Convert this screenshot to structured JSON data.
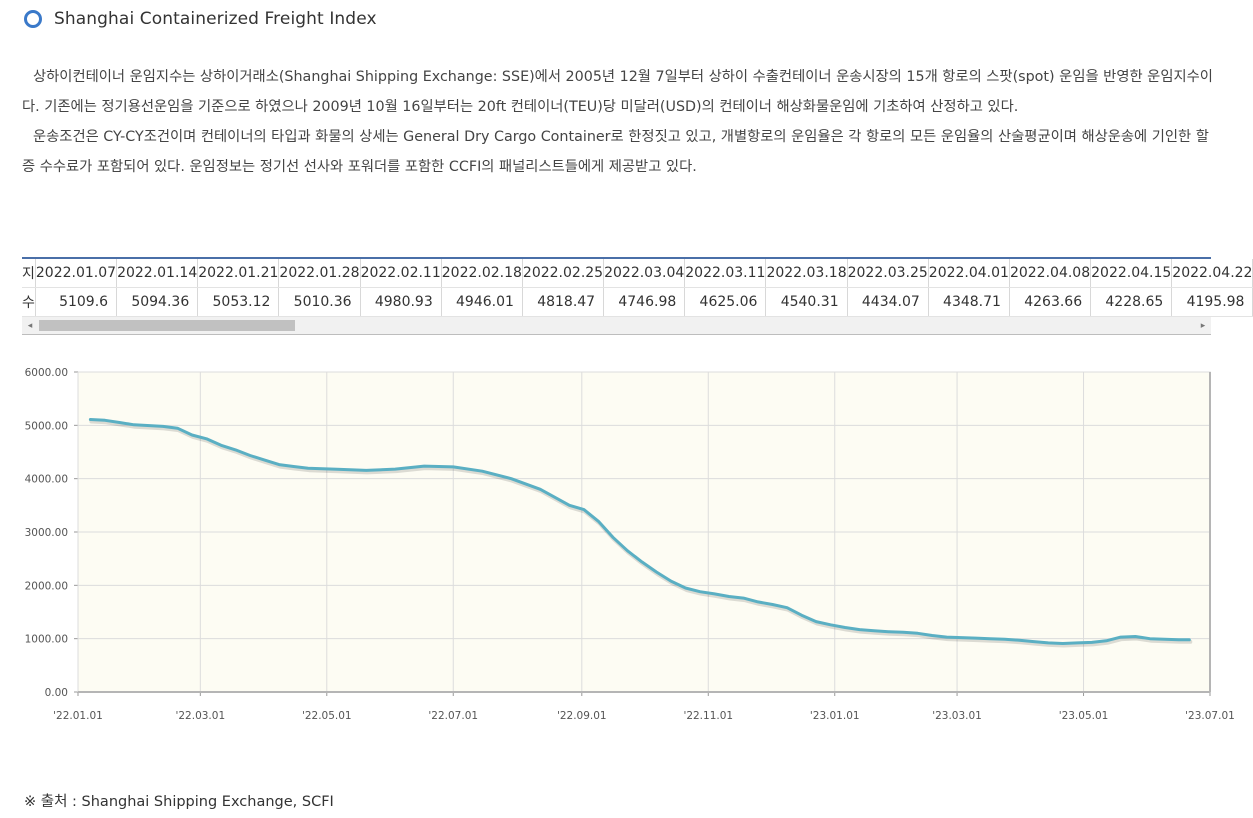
{
  "header": {
    "title": "Shanghai Containerized Freight Index"
  },
  "description": {
    "p1": "상하이컨테이너 운임지수는 상하이거래소(Shanghai Shipping Exchange: SSE)에서 2005년 12월 7일부터 상하이 수출컨테이너 운송시장의 15개 항로의 스팟(spot) 운임을 반영한 운임지수이다. 기존에는 정기용선운임을 기준으로 하였으나 2009년 10월 16일부터는 20ft 컨테이너(TEU)당 미달러(USD)의 컨테이너 해상화물운임에 기초하여 산정하고 있다.",
    "p2": "운송조건은 CY-CY조건이며 컨테이너의 타입과 화물의 상세는 General Dry Cargo Container로 한정짓고 있고, 개별항로의 운임율은 각 항로의 모든 운임율의 산술평균이며 해상운송에 기인한 할증 수수료가 포함되어 있다. 운임정보는 정기선 선사와 포워더를 포함한 CCFI의 패널리스트들에게 제공받고 있다."
  },
  "table": {
    "header_date": "지",
    "header_value": "수",
    "dates": [
      "2022.01.07",
      "2022.01.14",
      "2022.01.21",
      "2022.01.28",
      "2022.02.11",
      "2022.02.18",
      "2022.02.25",
      "2022.03.04",
      "2022.03.11",
      "2022.03.18",
      "2022.03.25",
      "2022.04.01",
      "2022.04.08",
      "2022.04.15",
      "2022.04.22"
    ],
    "values": [
      "5109.6",
      "5094.36",
      "5053.12",
      "5010.36",
      "4980.93",
      "4946.01",
      "4818.47",
      "4746.98",
      "4625.06",
      "4540.31",
      "4434.07",
      "4348.71",
      "4263.66",
      "4228.65",
      "4195.98"
    ],
    "scroll_left_icon": "◂",
    "scroll_right_icon": "▸"
  },
  "chart_data": {
    "type": "line",
    "title": "",
    "xlabel": "",
    "ylabel": "",
    "ylim": [
      0,
      6000
    ],
    "yticks": [
      "0.00",
      "1000.00",
      "2000.00",
      "3000.00",
      "4000.00",
      "5000.00",
      "6000.00"
    ],
    "xlim": [
      "2022-01-01",
      "2023-07-01"
    ],
    "xticks": [
      {
        "date": "2022-01-01",
        "label": "'22.01.01"
      },
      {
        "date": "2022-03-01",
        "label": "'22.03.01"
      },
      {
        "date": "2022-05-01",
        "label": "'22.05.01"
      },
      {
        "date": "2022-07-01",
        "label": "'22.07.01"
      },
      {
        "date": "2022-09-01",
        "label": "'22.09.01"
      },
      {
        "date": "2022-11-01",
        "label": "'22.11.01"
      },
      {
        "date": "2023-01-01",
        "label": "'23.01.01"
      },
      {
        "date": "2023-03-01",
        "label": "'23.03.01"
      },
      {
        "date": "2023-05-01",
        "label": "'23.05.01"
      },
      {
        "date": "2023-07-01",
        "label": "'23.07.01"
      }
    ],
    "grid": true,
    "series": [
      {
        "name": "",
        "color": "#5aafc3",
        "points": [
          [
            "2022-01-07",
            5109.6
          ],
          [
            "2022-01-14",
            5094.36
          ],
          [
            "2022-01-21",
            5053.12
          ],
          [
            "2022-01-28",
            5010.36
          ],
          [
            "2022-02-11",
            4980.93
          ],
          [
            "2022-02-18",
            4946.01
          ],
          [
            "2022-02-25",
            4818.47
          ],
          [
            "2022-03-04",
            4746.98
          ],
          [
            "2022-03-11",
            4625.06
          ],
          [
            "2022-03-18",
            4540.31
          ],
          [
            "2022-03-25",
            4434.07
          ],
          [
            "2022-04-01",
            4348.71
          ],
          [
            "2022-04-08",
            4263.66
          ],
          [
            "2022-04-15",
            4228.65
          ],
          [
            "2022-04-22",
            4195.98
          ],
          [
            "2022-05-06",
            4175
          ],
          [
            "2022-05-20",
            4155
          ],
          [
            "2022-06-03",
            4180
          ],
          [
            "2022-06-17",
            4235
          ],
          [
            "2022-07-01",
            4220
          ],
          [
            "2022-07-15",
            4140
          ],
          [
            "2022-07-29",
            4000
          ],
          [
            "2022-08-12",
            3800
          ],
          [
            "2022-08-26",
            3500
          ],
          [
            "2022-09-02",
            3420
          ],
          [
            "2022-09-09",
            3200
          ],
          [
            "2022-09-16",
            2900
          ],
          [
            "2022-09-23",
            2650
          ],
          [
            "2022-09-30",
            2440
          ],
          [
            "2022-10-07",
            2250
          ],
          [
            "2022-10-14",
            2080
          ],
          [
            "2022-10-21",
            1950
          ],
          [
            "2022-10-28",
            1880
          ],
          [
            "2022-11-04",
            1840
          ],
          [
            "2022-11-11",
            1790
          ],
          [
            "2022-11-18",
            1760
          ],
          [
            "2022-11-25",
            1690
          ],
          [
            "2022-12-02",
            1640
          ],
          [
            "2022-12-09",
            1580
          ],
          [
            "2022-12-16",
            1440
          ],
          [
            "2022-12-23",
            1320
          ],
          [
            "2022-12-30",
            1260
          ],
          [
            "2023-01-06",
            1210
          ],
          [
            "2023-01-13",
            1170
          ],
          [
            "2023-01-20",
            1150
          ],
          [
            "2023-01-27",
            1130
          ],
          [
            "2023-02-03",
            1120
          ],
          [
            "2023-02-10",
            1100
          ],
          [
            "2023-02-17",
            1060
          ],
          [
            "2023-02-24",
            1030
          ],
          [
            "2023-03-03",
            1020
          ],
          [
            "2023-03-10",
            1010
          ],
          [
            "2023-03-17",
            1000
          ],
          [
            "2023-03-24",
            990
          ],
          [
            "2023-03-31",
            970
          ],
          [
            "2023-04-07",
            945
          ],
          [
            "2023-04-14",
            920
          ],
          [
            "2023-04-21",
            910
          ],
          [
            "2023-04-28",
            920
          ],
          [
            "2023-05-05",
            930
          ],
          [
            "2023-05-12",
            960
          ],
          [
            "2023-05-19",
            1030
          ],
          [
            "2023-05-26",
            1040
          ],
          [
            "2023-06-02",
            1000
          ],
          [
            "2023-06-09",
            990
          ],
          [
            "2023-06-16",
            980
          ],
          [
            "2023-06-21",
            979
          ]
        ]
      }
    ]
  },
  "footer": {
    "source": "※ 출처 : Shanghai Shipping Exchange, SCFI"
  }
}
